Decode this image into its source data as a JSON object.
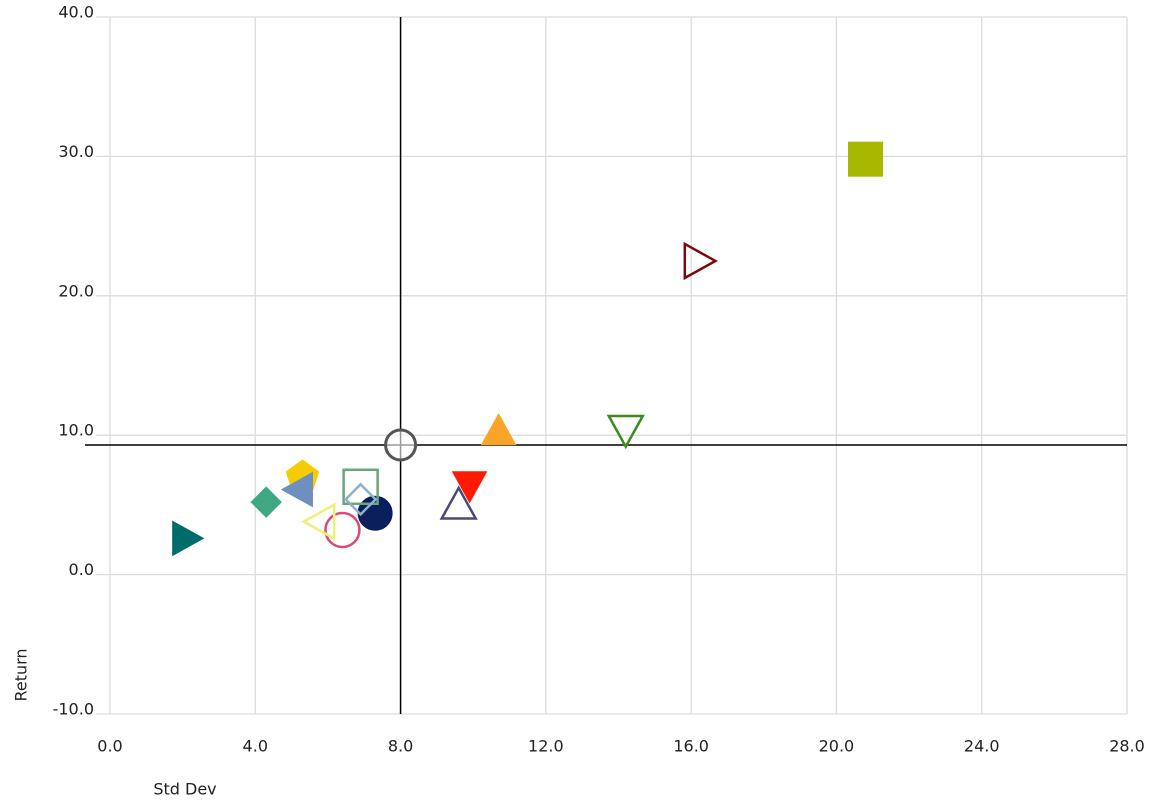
{
  "chart_data": {
    "type": "scatter",
    "xlabel": "Std Dev",
    "ylabel": "Return",
    "xlim": [
      0,
      28
    ],
    "ylim": [
      -10,
      40
    ],
    "xticks": [
      {
        "value": 0,
        "label": "0.0"
      },
      {
        "value": 4,
        "label": "4.0"
      },
      {
        "value": 8,
        "label": "8.0"
      },
      {
        "value": 12,
        "label": "12.0"
      },
      {
        "value": 16,
        "label": "16.0"
      },
      {
        "value": 20,
        "label": "20.0"
      },
      {
        "value": 24,
        "label": "24.0"
      },
      {
        "value": 28,
        "label": "28.0"
      }
    ],
    "yticks": [
      {
        "value": -10,
        "label": "-10.0"
      },
      {
        "value": 0,
        "label": "0.0"
      },
      {
        "value": 10,
        "label": "10.0"
      },
      {
        "value": 20,
        "label": "20.0"
      },
      {
        "value": 30,
        "label": "30.0"
      },
      {
        "value": 40,
        "label": "40.0"
      }
    ],
    "grid": true,
    "reference": {
      "x": 8,
      "y": 9.3
    },
    "x": [
      20.8,
      16.2,
      14.2,
      10.7,
      9.9,
      9.6,
      7.3,
      6.9,
      6.9,
      6.4,
      5.8,
      5.3,
      5.2,
      4.3,
      2.1
    ],
    "y": [
      29.8,
      22.5,
      10.4,
      10.3,
      6.4,
      5.0,
      4.4,
      6.3,
      5.4,
      3.2,
      3.8,
      7.0,
      6.1,
      5.2,
      2.6
    ],
    "symbols": [
      "square",
      "triangle-right-open",
      "triangle-down-open",
      "triangle-up",
      "triangle-down",
      "triangle-up-open",
      "circle",
      "square-open",
      "diamond-open",
      "circle-open",
      "triangle-left-open",
      "pentagon",
      "triangle-left",
      "diamond",
      "triangle-right"
    ],
    "colors": [
      "#a8b800",
      "#7a0a0a",
      "#3d8a1e",
      "#f9a52b",
      "#ff1a00",
      "#4a4a7a",
      "#0b1f5c",
      "#6aa57a",
      "#8fb0c8",
      "#d84a7a",
      "#eef07a",
      "#f5cc00",
      "#6f8fbf",
      "#3fa882",
      "#006b6b"
    ]
  }
}
